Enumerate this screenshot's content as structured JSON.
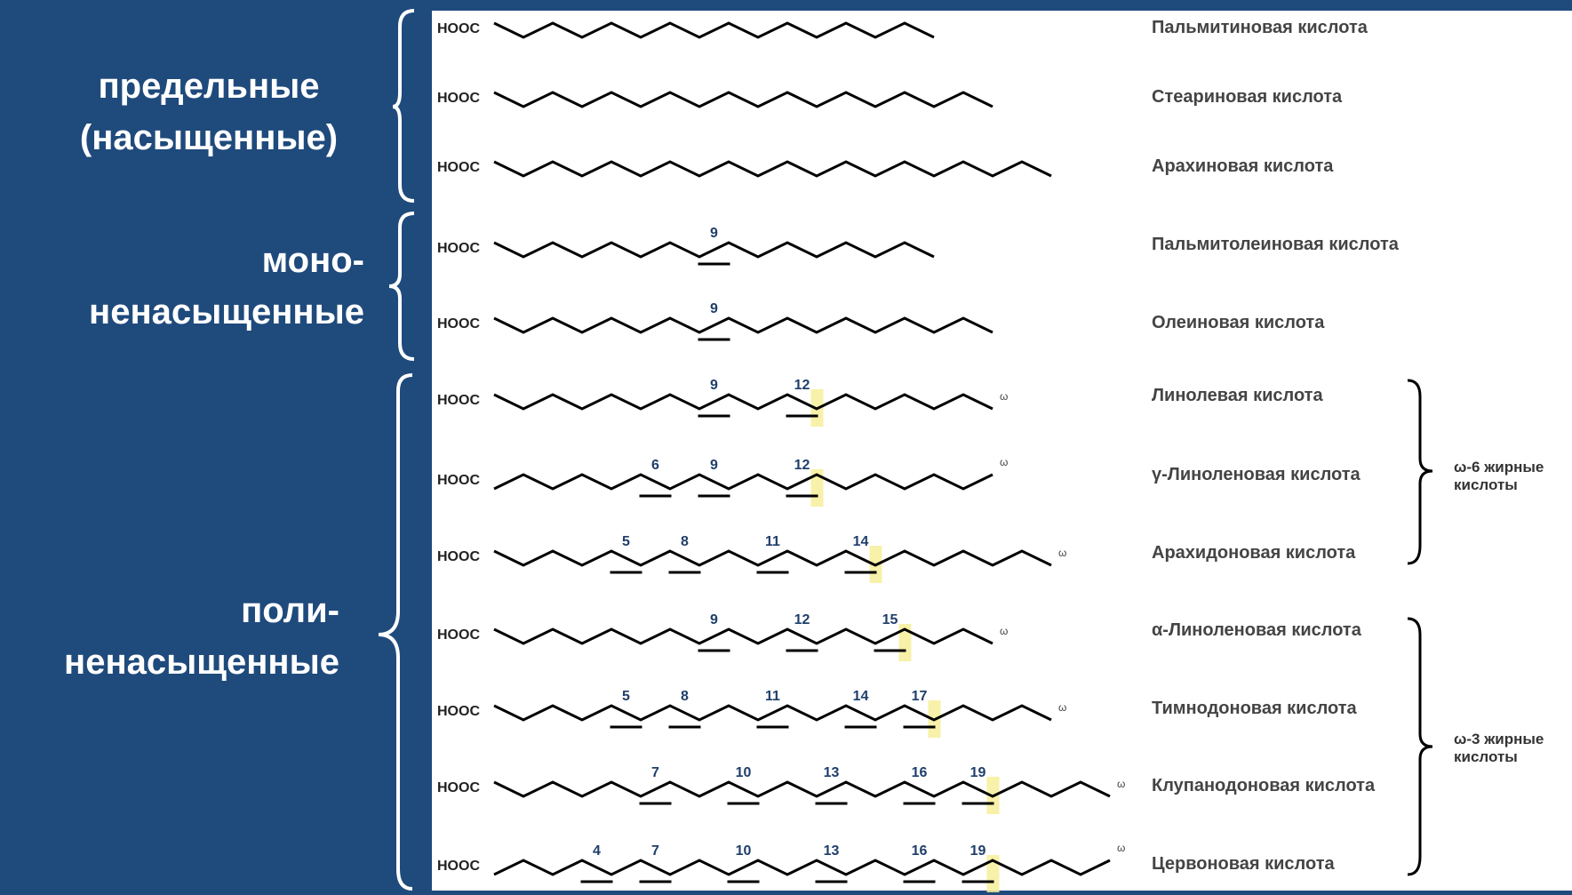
{
  "groups": [
    {
      "label": "предельные\n(насыщенные)"
    },
    {
      "label": "моно-\nненасыщенные"
    },
    {
      "label": "поли-\nненасыщенные"
    }
  ],
  "hooc_label": "HOOC",
  "omega_symbol": "ω",
  "acids": [
    {
      "name": "Пальмитиновая кислота",
      "double_bonds": []
    },
    {
      "name": "Стеариновая кислота",
      "double_bonds": []
    },
    {
      "name": "Арахиновая кислота",
      "double_bonds": []
    },
    {
      "name": "Пальмитолеиновая кислота",
      "double_bonds": [
        "9"
      ]
    },
    {
      "name": "Олеиновая кислота",
      "double_bonds": [
        "9"
      ]
    },
    {
      "name": "Линолевая кислота",
      "double_bonds": [
        "9",
        "12"
      ]
    },
    {
      "name": "γ-Линоленовая кислота",
      "double_bonds": [
        "6",
        "9",
        "12"
      ]
    },
    {
      "name": "Арахидоновая кислота",
      "double_bonds": [
        "5",
        "8",
        "11",
        "14"
      ]
    },
    {
      "name": "α-Линоленовая кислота",
      "double_bonds": [
        "9",
        "12",
        "15"
      ]
    },
    {
      "name": "Тимнодоновая кислота",
      "double_bonds": [
        "5",
        "8",
        "11",
        "14",
        "17"
      ]
    },
    {
      "name": "Клупанодоновая кислота",
      "double_bonds": [
        "7",
        "10",
        "13",
        "16",
        "19"
      ]
    },
    {
      "name": "Цервоновая кислота",
      "double_bonds": [
        "4",
        "7",
        "10",
        "13",
        "16",
        "19"
      ]
    }
  ],
  "families": [
    {
      "line1": "ω-6 жирные",
      "line2": "кислоты"
    },
    {
      "line1": "ω-3 жирные",
      "line2": "кислоты"
    }
  ],
  "colors": {
    "background": "#1f4a7c",
    "panel": "#ffffff",
    "chain": "#000000",
    "label": "#222222",
    "highlight": "#f6ef9a"
  }
}
